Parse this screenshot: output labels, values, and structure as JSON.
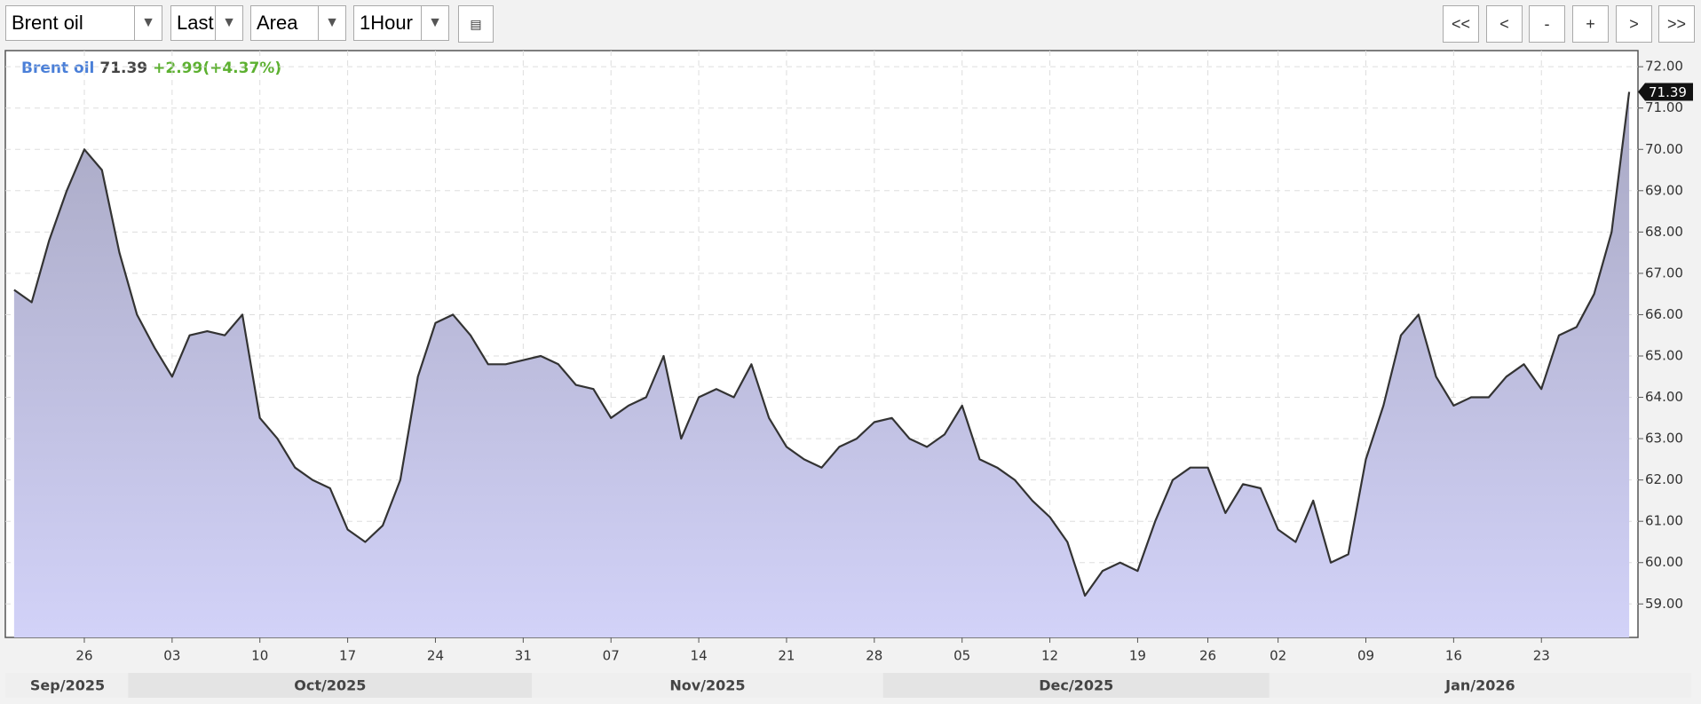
{
  "toolbar": {
    "symbol": "Brent oil",
    "field": "Last",
    "style": "Area",
    "interval": "1Hour",
    "nav": [
      "<<",
      "<",
      "-",
      "+",
      ">",
      ">>"
    ]
  },
  "chart_data": {
    "type": "area",
    "quote": {
      "name": "Brent oil",
      "last": "71.39",
      "change": "+2.99(+4.37%)"
    },
    "categories": [
      "2025-09-22",
      "2025-09-23",
      "2025-09-24",
      "2025-09-25",
      "2025-09-26",
      "2025-09-29",
      "2025-09-30",
      "2025-10-01",
      "2025-10-02",
      "2025-10-03",
      "2025-10-06",
      "2025-10-07",
      "2025-10-08",
      "2025-10-09",
      "2025-10-10",
      "2025-10-13",
      "2025-10-14",
      "2025-10-15",
      "2025-10-16",
      "2025-10-17",
      "2025-10-20",
      "2025-10-21",
      "2025-10-22",
      "2025-10-23",
      "2025-10-24",
      "2025-10-27",
      "2025-10-28",
      "2025-10-29",
      "2025-10-30",
      "2025-10-31",
      "2025-11-03",
      "2025-11-04",
      "2025-11-05",
      "2025-11-06",
      "2025-11-07",
      "2025-11-10",
      "2025-11-11",
      "2025-11-12",
      "2025-11-13",
      "2025-11-14",
      "2025-11-17",
      "2025-11-18",
      "2025-11-19",
      "2025-11-20",
      "2025-11-21",
      "2025-11-24",
      "2025-11-25",
      "2025-11-26",
      "2025-11-27",
      "2025-11-28",
      "2025-12-01",
      "2025-12-02",
      "2025-12-03",
      "2025-12-04",
      "2025-12-05",
      "2025-12-08",
      "2025-12-09",
      "2025-12-10",
      "2025-12-11",
      "2025-12-12",
      "2025-12-15",
      "2025-12-16",
      "2025-12-17",
      "2025-12-18",
      "2025-12-19",
      "2025-12-22",
      "2025-12-23",
      "2025-12-24",
      "2025-12-26",
      "2025-12-29",
      "2025-12-30",
      "2025-12-31",
      "2026-01-02",
      "2026-01-05",
      "2026-01-06",
      "2026-01-07",
      "2026-01-08",
      "2026-01-09",
      "2026-01-12",
      "2026-01-13",
      "2026-01-14",
      "2026-01-15",
      "2026-01-16",
      "2026-01-19",
      "2026-01-20",
      "2026-01-21",
      "2026-01-22",
      "2026-01-23",
      "2026-01-26",
      "2026-01-27",
      "2026-01-28",
      "2026-01-29",
      "2026-01-30"
    ],
    "series": [
      {
        "name": "Brent oil",
        "color": "#333333",
        "fill_top": "#a9a9c4",
        "fill_bottom": "#d2d2f8",
        "values": [
          66.6,
          66.3,
          67.8,
          69.0,
          70.0,
          69.5,
          67.5,
          66.0,
          65.2,
          64.5,
          65.5,
          65.6,
          65.5,
          66.0,
          63.5,
          63.0,
          62.3,
          62.0,
          61.8,
          60.8,
          60.5,
          60.9,
          62.0,
          64.5,
          65.8,
          66.0,
          65.5,
          64.8,
          64.8,
          64.9,
          65.0,
          64.8,
          64.3,
          64.2,
          63.5,
          63.8,
          64.0,
          65.0,
          63.0,
          64.0,
          64.2,
          64.0,
          64.8,
          63.5,
          62.8,
          62.5,
          62.3,
          62.8,
          63.0,
          63.4,
          63.5,
          63.0,
          62.8,
          63.1,
          63.8,
          62.5,
          62.3,
          62.0,
          61.5,
          61.1,
          60.5,
          59.2,
          59.8,
          60.0,
          59.8,
          61.0,
          62.0,
          62.3,
          62.3,
          61.2,
          61.9,
          61.8,
          60.8,
          60.5,
          61.5,
          60.0,
          60.2,
          62.5,
          63.8,
          65.5,
          66.0,
          64.5,
          63.8,
          64.0,
          64.0,
          64.5,
          64.8,
          64.2,
          65.5,
          65.7,
          66.5,
          68.0,
          71.39
        ]
      }
    ],
    "ylim": [
      58.19,
      72.39
    ],
    "yticks": [
      {
        "value": 59,
        "label": "59.00"
      },
      {
        "value": 60,
        "label": "60.00"
      },
      {
        "value": 61,
        "label": "61.00"
      },
      {
        "value": 62,
        "label": "62.00"
      },
      {
        "value": 63,
        "label": "63.00"
      },
      {
        "value": 64,
        "label": "64.00"
      },
      {
        "value": 65,
        "label": "65.00"
      },
      {
        "value": 66,
        "label": "66.00"
      },
      {
        "value": 67,
        "label": "67.00"
      },
      {
        "value": 68,
        "label": "68.00"
      },
      {
        "value": 69,
        "label": "69.00"
      },
      {
        "value": 70,
        "label": "70.00"
      },
      {
        "value": 71,
        "label": "71.00"
      },
      {
        "value": 72,
        "label": "72.00"
      }
    ],
    "xticks": [
      {
        "value": "2025-09-26",
        "label": "26"
      },
      {
        "value": "2025-10-03",
        "label": "03"
      },
      {
        "value": "2025-10-10",
        "label": "10"
      },
      {
        "value": "2025-10-17",
        "label": "17"
      },
      {
        "value": "2025-10-24",
        "label": "24"
      },
      {
        "value": "2025-10-31",
        "label": "31"
      },
      {
        "value": "2025-11-07",
        "label": "07"
      },
      {
        "value": "2025-11-14",
        "label": "14"
      },
      {
        "value": "2025-11-21",
        "label": "21"
      },
      {
        "value": "2025-11-28",
        "label": "28"
      },
      {
        "value": "2025-12-05",
        "label": "05"
      },
      {
        "value": "2025-12-12",
        "label": "12"
      },
      {
        "value": "2025-12-19",
        "label": "19"
      },
      {
        "value": "2025-12-26",
        "label": "26"
      },
      {
        "value": "2026-01-02",
        "label": "02"
      },
      {
        "value": "2026-01-09",
        "label": "09"
      },
      {
        "value": "2026-01-16",
        "label": "16"
      },
      {
        "value": "2026-01-23",
        "label": "23"
      }
    ],
    "months": [
      "Sep/2025",
      "Oct/2025",
      "Nov/2025",
      "Dec/2025",
      "Jan/2026"
    ],
    "grid": true
  }
}
